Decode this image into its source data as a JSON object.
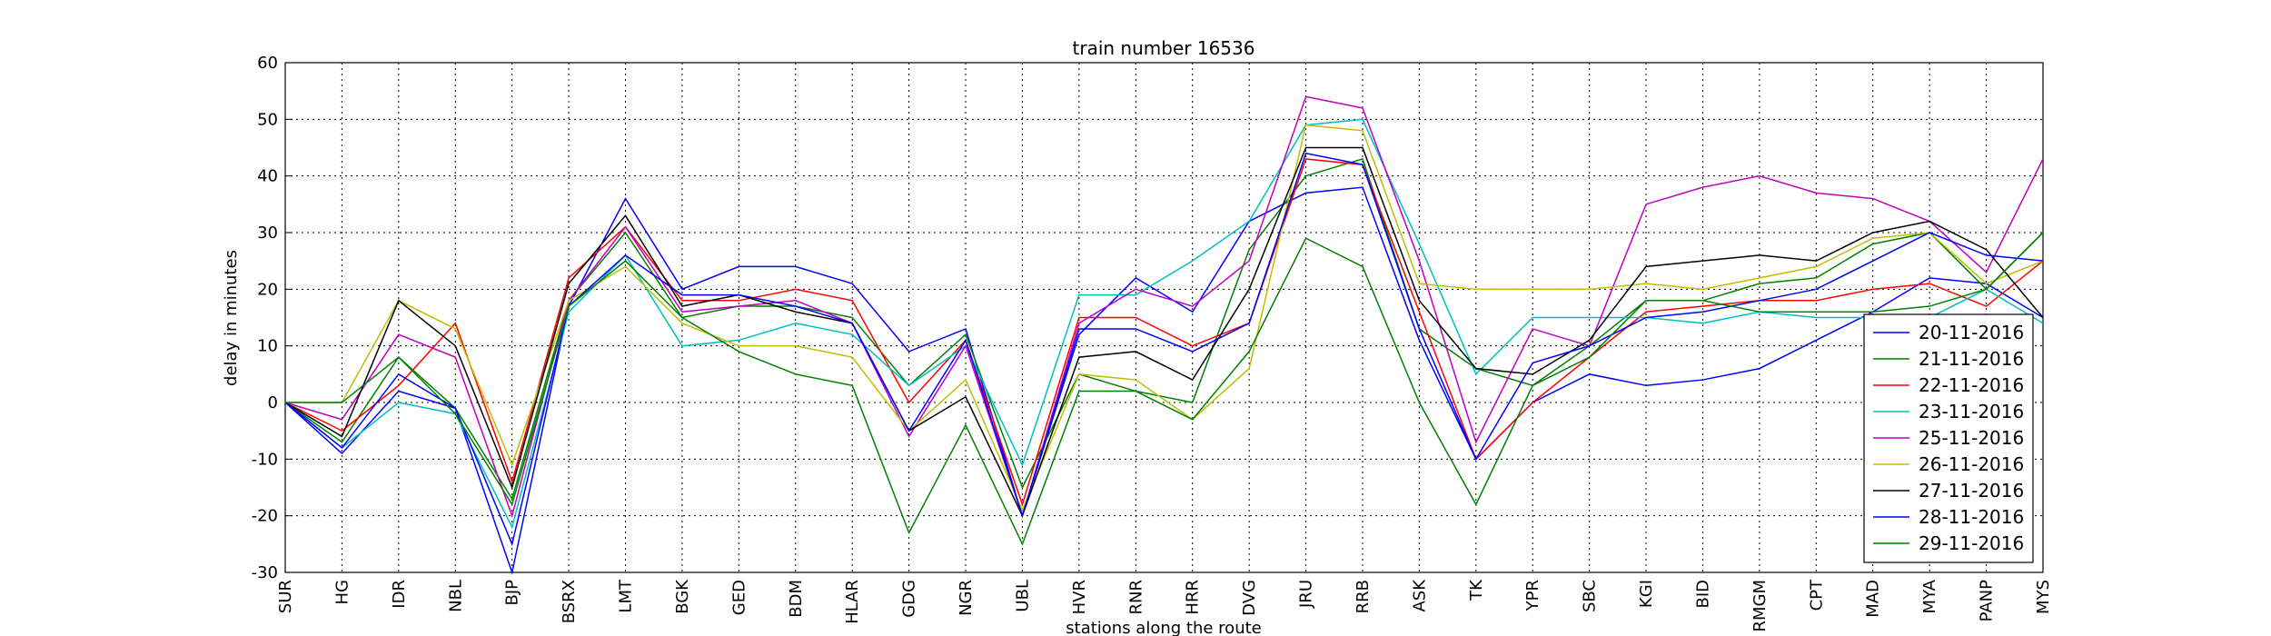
{
  "chart_data": {
    "type": "line",
    "title": "train number 16536",
    "ylabel": "delay in minutes",
    "xlabel": "stations along the route",
    "categories": [
      "SUR",
      "HG",
      "IDR",
      "NBL",
      "BJP",
      "BSRX",
      "LMT",
      "BGK",
      "GED",
      "BDM",
      "HLAR",
      "GDG",
      "NGR",
      "UBL",
      "HVR",
      "RNR",
      "HRR",
      "DVG",
      "JRU",
      "RRB",
      "ASK",
      "TK",
      "YPR",
      "SBC",
      "KGI",
      "BID",
      "RMGM",
      "CPT",
      "MAD",
      "MYA",
      "PANP",
      "MYS"
    ],
    "series": [
      {
        "name": "20-11-2016",
        "color": "#0000ff",
        "values": [
          0,
          -9,
          2,
          -1,
          -30,
          17,
          36,
          20,
          24,
          24,
          21,
          9,
          13,
          -20,
          12,
          22,
          16,
          32,
          37,
          38,
          11,
          -10,
          0,
          5,
          3,
          4,
          6,
          11,
          16,
          22,
          21,
          15
        ]
      },
      {
        "name": "21-11-2016",
        "color": "#008000",
        "values": [
          0,
          -7,
          8,
          -1,
          -17,
          18,
          30,
          15,
          17,
          17,
          15,
          3,
          12,
          -15,
          5,
          2,
          0,
          27,
          40,
          43,
          13,
          6,
          3,
          10,
          18,
          18,
          21,
          22,
          28,
          30,
          20,
          30
        ]
      },
      {
        "name": "22-11-2016",
        "color": "#ff0000",
        "values": [
          0,
          -5,
          3,
          14,
          -14,
          22,
          31,
          18,
          18,
          20,
          18,
          0,
          11,
          -18,
          15,
          15,
          10,
          14,
          43,
          42,
          16,
          -10,
          0,
          8,
          16,
          17,
          18,
          18,
          20,
          21,
          17,
          25
        ]
      },
      {
        "name": "23-11-2016",
        "color": "#00bfbf",
        "values": [
          0,
          -8,
          0,
          -2,
          -22,
          16,
          26,
          10,
          11,
          14,
          12,
          3,
          10,
          -11,
          19,
          19,
          25,
          32,
          49,
          50,
          28,
          5,
          15,
          15,
          15,
          14,
          16,
          15,
          15,
          15,
          20,
          14
        ]
      },
      {
        "name": "25-11-2016",
        "color": "#bf00bf",
        "values": [
          0,
          -3,
          12,
          8,
          -20,
          18,
          31,
          16,
          17,
          18,
          14,
          -6,
          10,
          -20,
          14,
          20,
          17,
          25,
          54,
          52,
          25,
          -7,
          13,
          10,
          35,
          38,
          40,
          37,
          36,
          32,
          23,
          43
        ]
      },
      {
        "name": "26-11-2016",
        "color": "#bfbf00",
        "values": [
          0,
          0,
          18,
          13,
          -11,
          18,
          24,
          14,
          10,
          10,
          8,
          -5,
          4,
          -19,
          5,
          4,
          -3,
          6,
          49,
          48,
          21,
          20,
          20,
          20,
          21,
          20,
          22,
          24,
          29,
          30,
          21,
          25
        ]
      },
      {
        "name": "27-11-2016",
        "color": "#000000",
        "values": [
          0,
          -6,
          18,
          10,
          -15,
          21,
          33,
          17,
          19,
          16,
          14,
          -5,
          1,
          -20,
          8,
          9,
          4,
          20,
          45,
          45,
          18,
          6,
          5,
          11,
          24,
          25,
          26,
          25,
          30,
          32,
          27,
          15
        ]
      },
      {
        "name": "28-11-2016",
        "color": "#0000ff",
        "values": [
          0,
          -8,
          5,
          -1,
          -25,
          17,
          26,
          19,
          19,
          17,
          14,
          -5,
          11,
          -20,
          13,
          13,
          9,
          14,
          44,
          42,
          13,
          -10,
          7,
          10,
          15,
          16,
          18,
          20,
          25,
          30,
          26,
          25
        ]
      },
      {
        "name": "29-11-2016",
        "color": "#008000",
        "values": [
          0,
          0,
          8,
          -2,
          -18,
          17,
          25,
          15,
          9,
          5,
          3,
          -23,
          -4,
          -25,
          2,
          2,
          -3,
          9,
          29,
          24,
          0,
          -18,
          3,
          8,
          18,
          18,
          16,
          16,
          16,
          17,
          20,
          30
        ]
      }
    ],
    "ylim": [
      -30,
      60
    ],
    "yticks": [
      -30,
      -20,
      -10,
      0,
      10,
      20,
      30,
      40,
      50,
      60
    ],
    "grid": true,
    "legend": "lower right"
  }
}
